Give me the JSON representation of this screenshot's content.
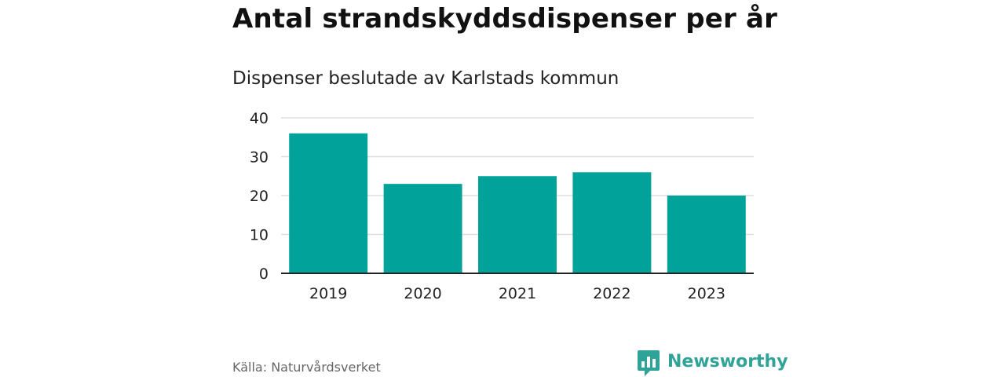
{
  "title": "Antal strandskyddsdispenser per år",
  "subtitle": "Dispenser beslutade av Karlstads kommun",
  "source": "Källa: Naturvårdsverket",
  "brand": "Newsworthy",
  "colors": {
    "bar": "#00a29a",
    "grid": "#dddddd",
    "axis": "#222222",
    "brand": "#30a399"
  },
  "chart_data": {
    "type": "bar",
    "title": "Antal strandskyddsdispenser per år",
    "subtitle": "Dispenser beslutade av Karlstads kommun",
    "xlabel": "",
    "ylabel": "",
    "categories": [
      "2019",
      "2020",
      "2021",
      "2022",
      "2023"
    ],
    "values": [
      36,
      23,
      25,
      26,
      20
    ],
    "ylim": [
      0,
      40
    ],
    "yticks": [
      0,
      10,
      20,
      30,
      40
    ],
    "grid": true,
    "legend": "none"
  }
}
